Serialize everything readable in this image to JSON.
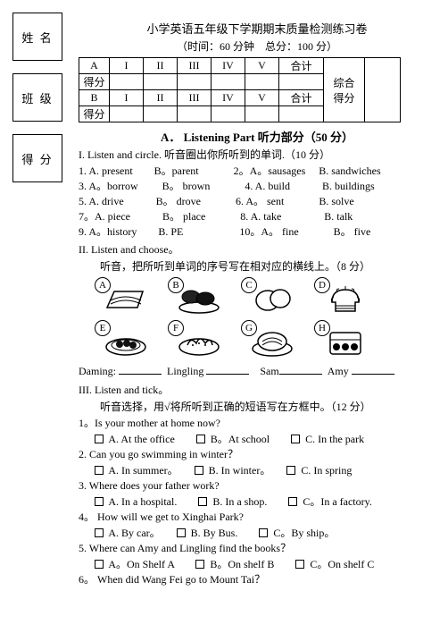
{
  "left": {
    "name": "姓 名",
    "class": "班 级",
    "score": "得 分"
  },
  "title": "小学英语五年级下学期期末质量检测练习卷",
  "sub": "（时间：60 分钟　总分：100 分）",
  "scoreTable": {
    "row1": [
      "A",
      "I",
      "II",
      "III",
      "IV",
      "V",
      "合计"
    ],
    "row2": "得分",
    "row3": [
      "B",
      "I",
      "II",
      "III",
      "IV",
      "V",
      "合计"
    ],
    "row4": "得分",
    "zh": "综合\n得分"
  },
  "partA": "A．  Listening Part 听力部分（50 分）",
  "I_title": "I. Listen and circle. 听音圈出你所听到的单词.（10 分）",
  "I": [
    "1. A. present　　B。parent　　　 2。A。sausages　 B. sandwiches",
    "3. A。borrow　　 B。 brown　　　 4. A. build　　　B. buildings",
    "5. A. drive　　　B。 drove　　　 6. A。 sent　　　 B. solve",
    "7。A. piece　　　B。 place　　　 8. A. take　　　　B. talk",
    "9. A。history　　B. PE　　　　　 10。A。 fine　　　 B。 five"
  ],
  "II_title": "II. Listen and choose。",
  "II_sub": "听音，把所听到单词的序号写在相对应的横线上。（8 分）",
  "pics": [
    "A",
    "B",
    "C",
    "D",
    "E",
    "F",
    "G",
    "H"
  ],
  "fill": {
    "a": "Daming:",
    "b": "Lingling",
    "c": "Sam",
    "d": "Amy"
  },
  "III_title": "III. Listen and tick。",
  "III_sub": "听音选择，用√将所听到正确的短语写在方框中。（12 分）",
  "III_q": [
    {
      "q": "1。Is your mother at home now?",
      "a": "A. At the office",
      "b": "B。At school",
      "c": "C. In the park"
    },
    {
      "q": "2. Can you go swimming in winter？",
      "a": "A. In summer。",
      "b": "B. In winter。",
      "c": "C. In spring"
    },
    {
      "q": "3. Where does your father work?",
      "a": "A. In a hospital.",
      "b": "B. In a shop.",
      "c": "C。In a factory."
    },
    {
      "q": "4。 How will we get to Xinghai Park?",
      "a": "A. By car。",
      "b": "B. By Bus.",
      "c": "C。By ship。"
    },
    {
      "q": "5. Where can Amy and Lingling find the books？",
      "a": "A。On Shelf A",
      "b": "B。On shelf B",
      "c": "C。On shelf C"
    },
    {
      "q": "6。 When did Wang Fei go to Mount Tai？",
      "a": null,
      "b": null,
      "c": null
    }
  ]
}
